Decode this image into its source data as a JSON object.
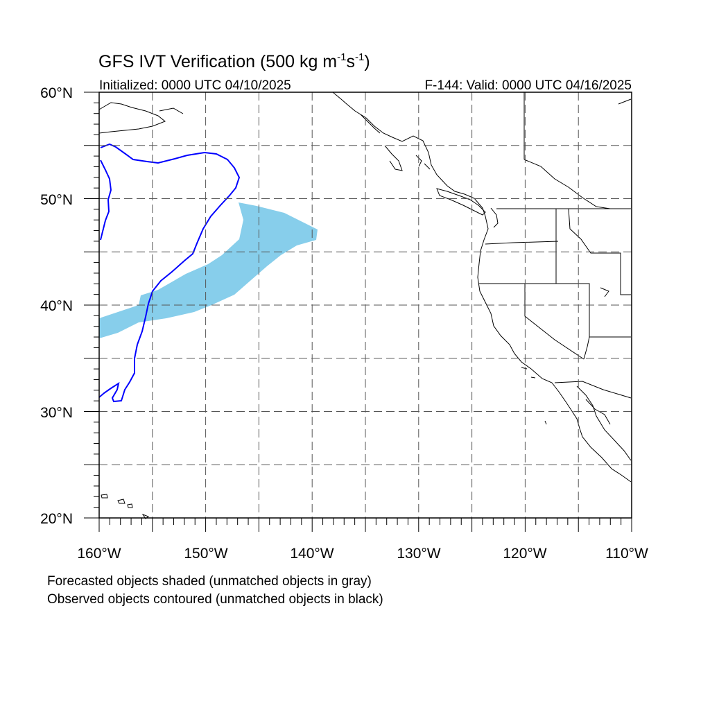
{
  "title": {
    "main": "GFS IVT Verification (500 kg m",
    "exp1": "-1",
    "mid": "s",
    "exp2": "-1",
    "end": ")"
  },
  "init_label": "Initialized: 0000 UTC 04/10/2025",
  "valid_label": "F-144: Valid: 0000 UTC 04/16/2025",
  "lat_labels": [
    "60°N",
    "50°N",
    "40°N",
    "30°N",
    "20°N"
  ],
  "lon_labels": [
    "160°W",
    "150°W",
    "140°W",
    "130°W",
    "120°W",
    "110°W"
  ],
  "notes": [
    "Forecasted objects shaded (unmatched objects in gray)",
    "Observed objects contoured (unmatched objects in black)"
  ],
  "colors": {
    "forecast_shade": "#87ceeb",
    "observed_contour": "#0000ff",
    "coast": "#000000",
    "grid": "#555555"
  },
  "map": {
    "lon_range": [
      -160,
      -110
    ],
    "lat_range": [
      20,
      60
    ],
    "grid_lon_step": 5,
    "grid_lat_step": 5
  }
}
